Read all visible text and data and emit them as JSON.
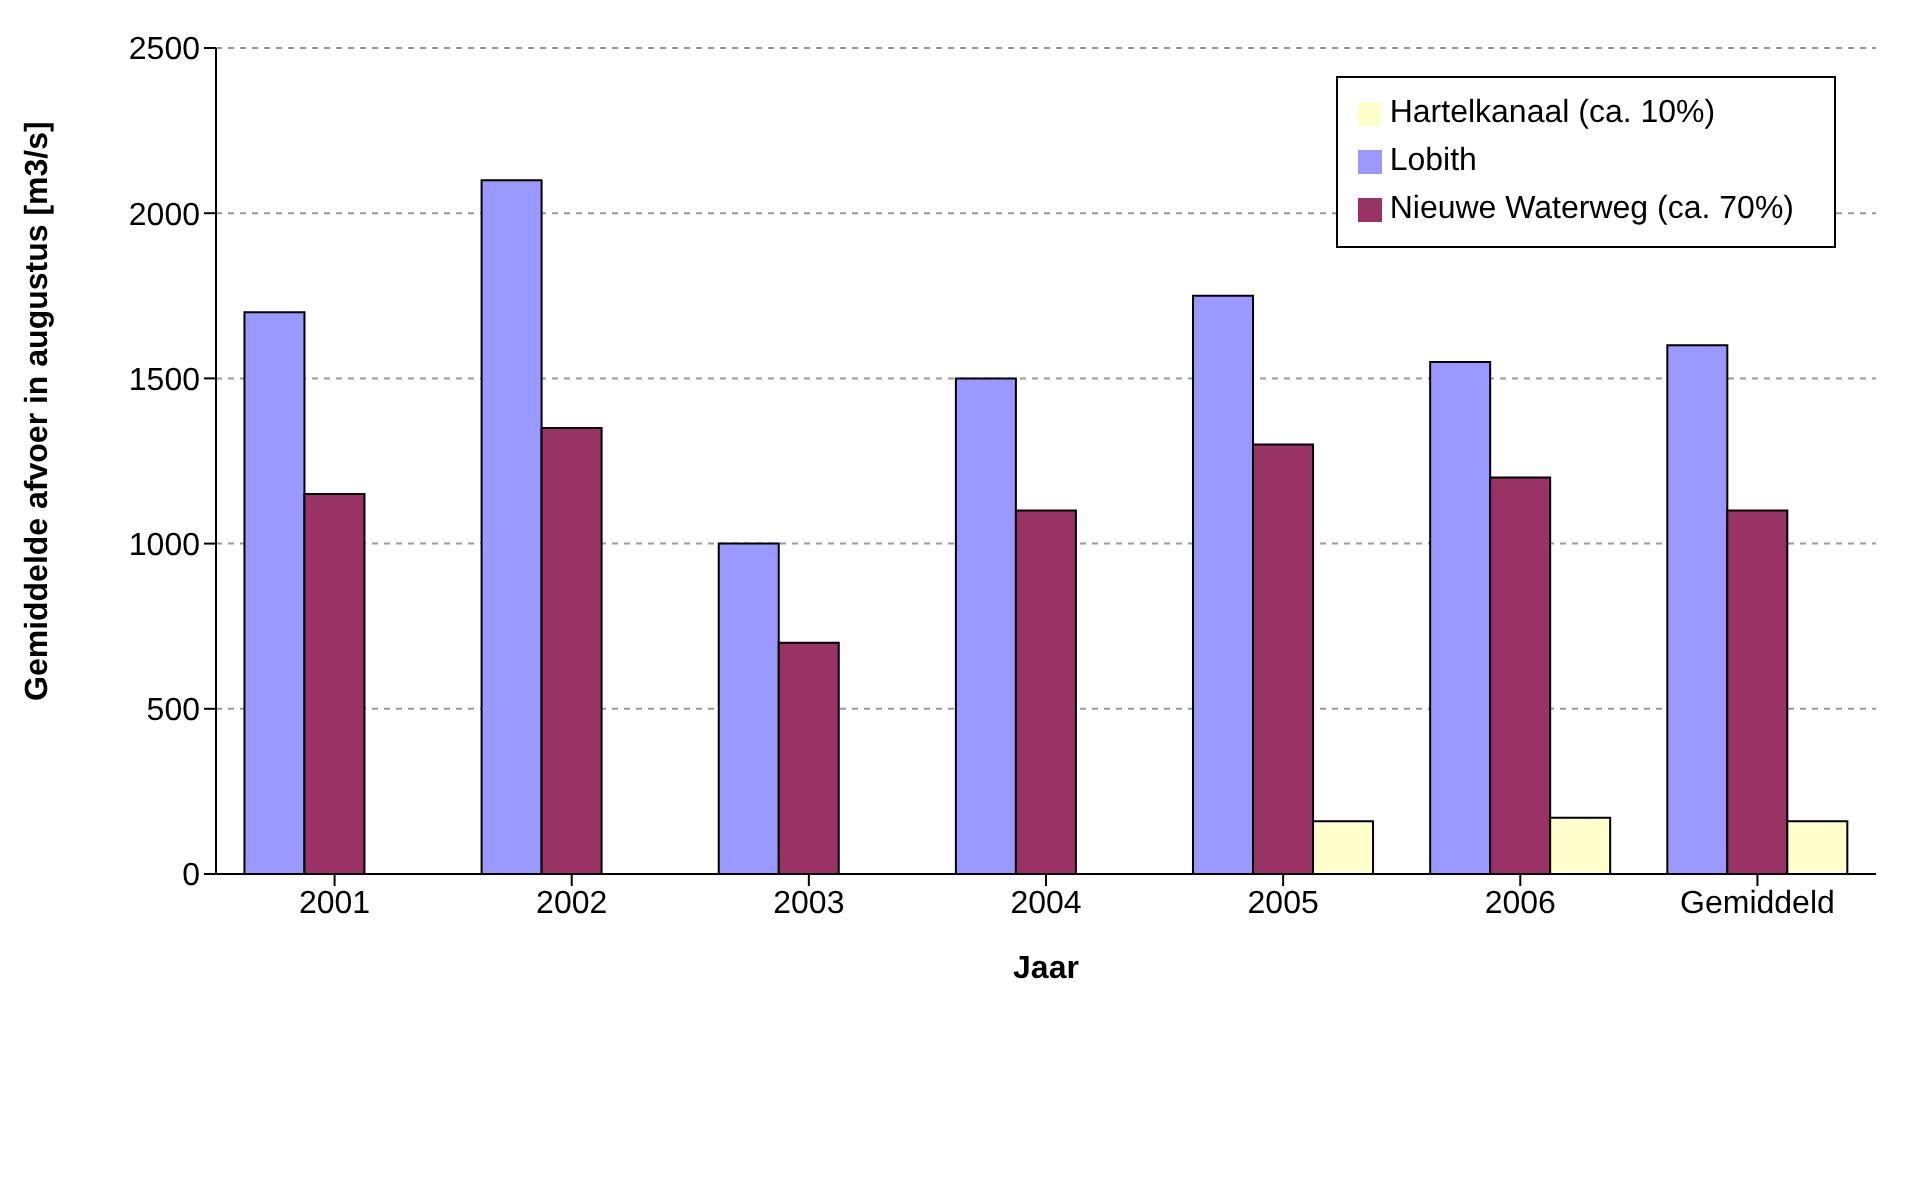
{
  "chart_data": {
    "type": "bar",
    "xlabel": "Jaar",
    "ylabel": "Gemiddelde afvoer in augustus [m3/s]",
    "categories": [
      "2001",
      "2002",
      "2003",
      "2004",
      "2005",
      "2006",
      "Gemiddeld"
    ],
    "series": [
      {
        "name": "Lobith",
        "color": "#9999ff",
        "values": [
          1700,
          2100,
          1000,
          1500,
          1750,
          1550,
          1600
        ]
      },
      {
        "name": "Nieuwe Waterweg (ca. 70%)",
        "color": "#993366",
        "values": [
          1150,
          1350,
          700,
          1100,
          1300,
          1200,
          1100
        ]
      },
      {
        "name": "Hartelkanaal (ca. 10%)",
        "color": "#ffffcc",
        "values": [
          null,
          null,
          null,
          null,
          160,
          170,
          160
        ]
      }
    ],
    "ylim": [
      0,
      2500
    ],
    "yticks": [
      0,
      500,
      1000,
      1500,
      2000,
      2500
    ],
    "grid": "y",
    "legend": "top right"
  }
}
